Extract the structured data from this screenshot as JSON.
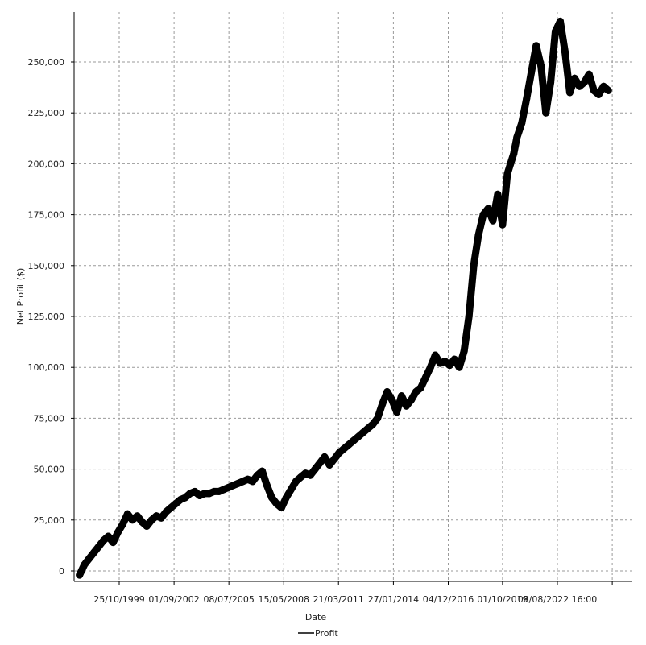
{
  "chart_data": {
    "type": "line",
    "title": "",
    "xlabel": "Date",
    "ylabel": "Net Profit ($)",
    "ylim": [
      -5000,
      272500
    ],
    "y_ticks": [
      0,
      25000,
      50000,
      75000,
      100000,
      125000,
      150000,
      175000,
      200000,
      225000,
      250000
    ],
    "y_tick_labels": [
      "0",
      "25,000",
      "50,000",
      "75,000",
      "100,000",
      "125,000",
      "150,000",
      "175,000",
      "200,000",
      "225,000",
      "250,000"
    ],
    "x_tick_labels": [
      "25/10/1999",
      "01/09/2002",
      "08/07/2005",
      "15/05/2008",
      "21/03/2011",
      "27/01/2014",
      "04/12/2016",
      "01/10/2019",
      "08/08/2022 16:00"
    ],
    "x_tick_dates": [
      "1999-10-25",
      "2002-09-01",
      "2005-07-08",
      "2008-05-15",
      "2011-03-21",
      "2014-01-27",
      "2016-12-04",
      "2019-10-01",
      "2022-08-08"
    ],
    "grid": true,
    "legend": {
      "position": "bottom-center",
      "entries": [
        "Profit"
      ]
    },
    "series": [
      {
        "name": "Profit",
        "color": "#000000",
        "x": [
          "1997-10-01",
          "1998-01-01",
          "1998-04-01",
          "1998-07-01",
          "1998-10-01",
          "1999-01-01",
          "1999-04-01",
          "1999-07-01",
          "1999-10-01",
          "2000-01-01",
          "2000-04-01",
          "2000-07-01",
          "2000-10-01",
          "2001-01-01",
          "2001-04-01",
          "2001-07-01",
          "2001-10-01",
          "2002-01-01",
          "2002-04-01",
          "2002-07-01",
          "2002-10-01",
          "2003-01-01",
          "2003-04-01",
          "2003-07-01",
          "2003-10-01",
          "2004-01-01",
          "2004-04-01",
          "2004-07-01",
          "2004-10-01",
          "2005-01-01",
          "2005-04-01",
          "2005-07-01",
          "2005-10-01",
          "2006-01-01",
          "2006-04-01",
          "2006-07-01",
          "2006-10-01",
          "2007-01-01",
          "2007-04-01",
          "2007-07-01",
          "2007-10-01",
          "2008-01-01",
          "2008-04-01",
          "2008-07-01",
          "2008-10-01",
          "2009-01-01",
          "2009-04-01",
          "2009-07-01",
          "2009-10-01",
          "2010-01-01",
          "2010-04-01",
          "2010-07-01",
          "2010-10-01",
          "2011-01-01",
          "2011-04-01",
          "2011-07-01",
          "2011-10-01",
          "2012-01-01",
          "2012-04-01",
          "2012-07-01",
          "2012-10-01",
          "2013-01-01",
          "2013-04-01",
          "2013-07-01",
          "2013-10-01",
          "2014-01-01",
          "2014-04-01",
          "2014-07-01",
          "2014-10-01",
          "2015-01-01",
          "2015-04-01",
          "2015-07-01",
          "2015-10-01",
          "2016-01-01",
          "2016-04-01",
          "2016-07-01",
          "2016-10-01",
          "2017-01-01",
          "2017-04-01",
          "2017-07-01",
          "2017-10-01",
          "2018-01-01",
          "2018-04-01",
          "2018-07-01",
          "2018-10-01",
          "2019-01-01",
          "2019-04-01",
          "2019-07-01",
          "2019-10-01",
          "2020-01-01",
          "2020-03-01",
          "2020-05-01",
          "2020-07-01",
          "2020-10-01",
          "2021-01-01",
          "2021-04-01",
          "2021-07-01",
          "2021-10-01",
          "2022-01-01",
          "2022-04-01",
          "2022-07-01",
          "2022-10-01",
          "2023-01-01",
          "2023-04-01",
          "2023-07-01",
          "2023-10-01",
          "2024-01-01",
          "2024-04-01",
          "2024-07-01",
          "2024-10-01",
          "2025-01-01",
          "2025-04-01"
        ],
        "values": [
          -2000,
          3000,
          6000,
          9000,
          12000,
          15000,
          17000,
          14000,
          19000,
          23000,
          28000,
          25000,
          27000,
          24000,
          22000,
          25000,
          27000,
          26000,
          29000,
          31000,
          33000,
          35000,
          36000,
          38000,
          39000,
          37000,
          38000,
          38000,
          39000,
          39000,
          40000,
          41000,
          42000,
          43000,
          44000,
          45000,
          44000,
          47000,
          49000,
          42000,
          36000,
          33000,
          31000,
          36000,
          40000,
          44000,
          46000,
          48000,
          47000,
          50000,
          53000,
          56000,
          52000,
          55000,
          58000,
          60000,
          62000,
          64000,
          66000,
          68000,
          70000,
          72000,
          75000,
          82000,
          88000,
          84000,
          78000,
          86000,
          81000,
          84000,
          88000,
          90000,
          95000,
          100000,
          106000,
          102000,
          103000,
          101000,
          104000,
          100000,
          108000,
          125000,
          150000,
          165000,
          175000,
          178000,
          172000,
          185000,
          170000,
          195000,
          200000,
          205000,
          213000,
          220000,
          232000,
          245000,
          258000,
          248000,
          225000,
          240000,
          265000,
          270000,
          255000,
          235000,
          242000,
          238000,
          240000,
          244000,
          236000,
          234000,
          238000,
          236000
        ]
      }
    ]
  }
}
